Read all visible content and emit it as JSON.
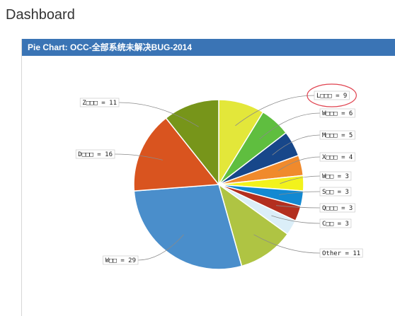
{
  "page": {
    "title": "Dashboard"
  },
  "panel": {
    "header": "Pie Chart: OCC-全部系统未解决BUG-2014"
  },
  "highlight_color": "#e0424f",
  "chart_data": {
    "type": "pie",
    "title": "",
    "slices": [
      {
        "label": "L□□□ = 9",
        "value": 9,
        "color": "#e3e73a",
        "highlighted": true
      },
      {
        "label": "W□□□ = 6",
        "value": 6,
        "color": "#5fbe3f"
      },
      {
        "label": "M□□□ = 5",
        "value": 5,
        "color": "#17478a"
      },
      {
        "label": "X□□□ = 4",
        "value": 4,
        "color": "#f08a2c"
      },
      {
        "label": "W□□ = 3",
        "value": 3,
        "color": "#f2f21c"
      },
      {
        "label": "S□□ = 3",
        "value": 3,
        "color": "#1289d2"
      },
      {
        "label": "Q□□□ = 3",
        "value": 3,
        "color": "#b32f1f"
      },
      {
        "label": "C□□ = 3",
        "value": 3,
        "color": "#dbeef8"
      },
      {
        "label": "Other = 11",
        "value": 11,
        "color": "#afc443"
      },
      {
        "label": "W□□ = 29",
        "value": 29,
        "color": "#4a8ecb"
      },
      {
        "label": "D□□□ = 16",
        "value": 16,
        "color": "#d9541f"
      },
      {
        "label": "Z□□□ = 11",
        "value": 11,
        "color": "#77951a"
      }
    ]
  }
}
